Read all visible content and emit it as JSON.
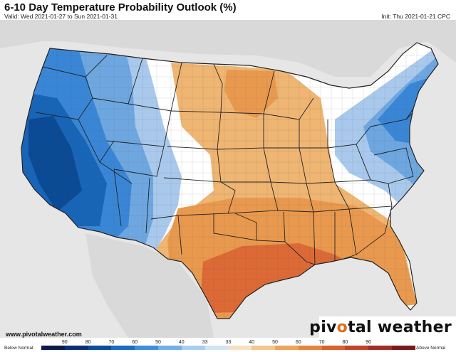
{
  "header": {
    "title": "6-10 Day Temperature Probability Outlook (%)",
    "valid": "Valid: Wed 2021-01-27 to Sun 2021-01-31",
    "init": "Init: Thu 2021-01-21 CPC"
  },
  "footer": {
    "url": "www.pivotalweather.com",
    "brand_prefix": "piv",
    "brand_dot": "o",
    "brand_suffix": "tal weather"
  },
  "legend": {
    "below_label": "Below Normal",
    "above_label": "Above Normal",
    "below_ticks": [
      "90",
      "80",
      "70",
      "60",
      "50",
      "40",
      "33"
    ],
    "above_ticks": [
      "33",
      "40",
      "50",
      "60",
      "70",
      "80",
      "90"
    ],
    "below_colors": [
      "#0c1a4a",
      "#0d2f78",
      "#0b4c9c",
      "#1a6cc4",
      "#3d8edc",
      "#73b0e8",
      "#a9cdef",
      "#d3e4f5"
    ],
    "above_colors": [
      "#f7e0c4",
      "#f3c68c",
      "#eba45c",
      "#e5853b",
      "#d8612c",
      "#c4432a",
      "#a42c27",
      "#7a1a1c"
    ]
  },
  "map_colors": {
    "ocean": "#e8e8e8",
    "land_outside": "#dedede",
    "near_normal": "#ffffff",
    "above_40": "#efb572",
    "above_50": "#e9994e",
    "above_60": "#dd6a36",
    "below_40": "#a9c9ec",
    "below_50": "#6ea7e0",
    "below_60": "#3a86d6",
    "below_70": "#1865b8",
    "below_80": "#0b4a94",
    "borders": "#333333"
  }
}
